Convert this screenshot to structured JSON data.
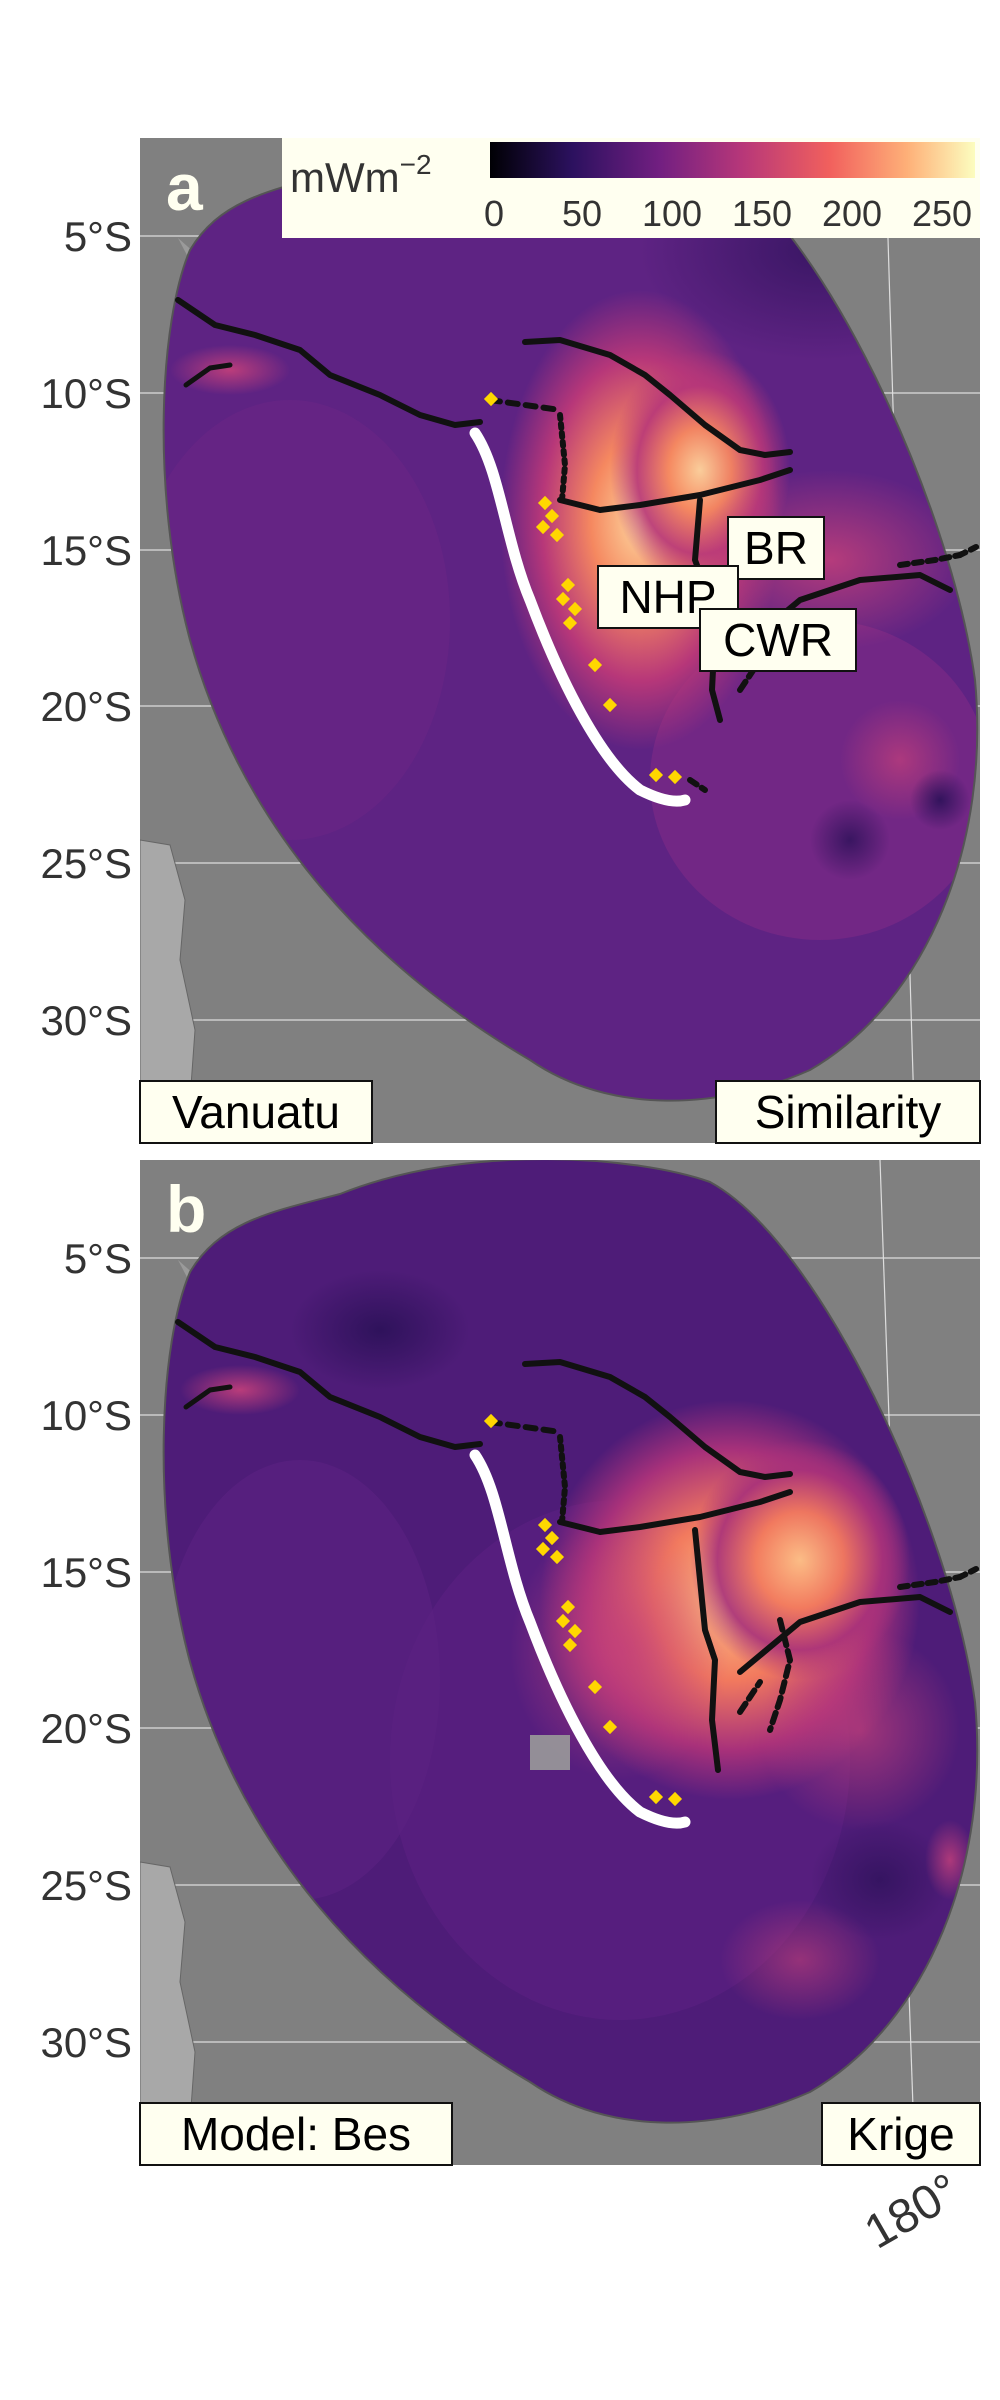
{
  "panels": [
    {
      "letter": "a",
      "region": "Vanuatu",
      "method": "Similarity",
      "features": [
        "NHP",
        "BR",
        "CWR"
      ]
    },
    {
      "letter": "b",
      "region": "Model: Bes",
      "method": "Krige"
    }
  ],
  "colorbar": {
    "unit_prefix": "mWm",
    "unit_exp": "−2",
    "ticks": [
      "0",
      "50",
      "100",
      "150",
      "200",
      "250"
    ],
    "min": 0,
    "max": 260,
    "colors": [
      "#000004",
      "#2c115f",
      "#721f81",
      "#b73779",
      "#f1605d",
      "#feb078",
      "#fcfdbf"
    ]
  },
  "lat_ticks": [
    "5°S",
    "10°S",
    "15°S",
    "20°S",
    "25°S",
    "30°S"
  ],
  "lon_tick": "180°",
  "colors": {
    "ocean": "#808080",
    "land": "#a8a8a8",
    "boxes": "#fffff0",
    "trench": "#ffffff",
    "volcanoes": "#ffd700",
    "plate_boundaries": "#111111"
  }
}
